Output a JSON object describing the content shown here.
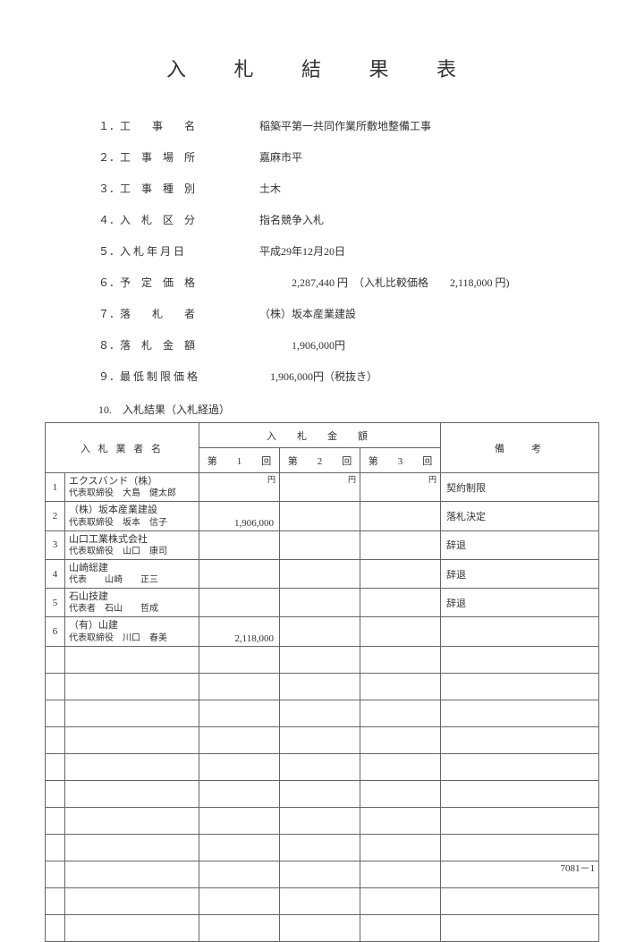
{
  "title": "入 札 結 果 表",
  "info": [
    {
      "num": "１．",
      "label": "工　　事　　名",
      "value": "稲築平第一共同作業所敷地整備工事"
    },
    {
      "num": "２．",
      "label": "工　事　場　所",
      "value": "嘉麻市平"
    },
    {
      "num": "３．",
      "label": "工　事　種　別",
      "value": "土木"
    },
    {
      "num": "４．",
      "label": "入　札　区　分",
      "value": "指名競争入札"
    },
    {
      "num": "５．",
      "label": "入 札 年 月 日",
      "value": "平成29年12月20日"
    },
    {
      "num": "６．",
      "label": "予　定　価　格",
      "value": "　　　2,287,440 円　（入札比較価格　　2,118,000 円)"
    },
    {
      "num": "７．",
      "label": "落　　札　　者",
      "value": "（株）坂本産業建設"
    },
    {
      "num": "８．",
      "label": "落　札　金　額",
      "value": "　　　1,906,000円"
    },
    {
      "num": "９．",
      "label": "最 低 制 限 価 格",
      "value": "　1,906,000円（税抜き）"
    }
  ],
  "section10": "10.　入札結果（入札経過）",
  "table": {
    "headers": {
      "bidder": "入 札 業 者 名",
      "amount": "入　札　金　額",
      "round1": "第　　1　　回",
      "round2": "第　　2　　回",
      "round3": "第　　3　　回",
      "remarks": "備考",
      "yen": "円"
    },
    "rows": [
      {
        "n": "1",
        "l1": "エクスバンド（株）",
        "l2": "代表取締役　大島　健太郎",
        "r1": "",
        "r2": "",
        "r3": "",
        "note": "契約制限"
      },
      {
        "n": "2",
        "l1": "（株）坂本産業建設",
        "l2": "代表取締役　坂本　信子",
        "r1": "1,906,000",
        "r2": "",
        "r3": "",
        "note": "落札決定"
      },
      {
        "n": "3",
        "l1": "山口工業株式会社",
        "l2": "代表取締役　山口　康司",
        "r1": "",
        "r2": "",
        "r3": "",
        "note": "辞退"
      },
      {
        "n": "4",
        "l1": "山崎総建",
        "l2": "代表　　山崎　　正三",
        "r1": "",
        "r2": "",
        "r3": "",
        "note": "辞退"
      },
      {
        "n": "5",
        "l1": "石山技建",
        "l2": "代表者　石山　　哲成",
        "r1": "",
        "r2": "",
        "r3": "",
        "note": "辞退"
      },
      {
        "n": "6",
        "l1": "（有）山建",
        "l2": "代表取締役　川口　春美",
        "r1": "2,118,000",
        "r2": "",
        "r3": "",
        "note": ""
      }
    ],
    "emptyRows": 11
  },
  "pageNum": "7081－1"
}
